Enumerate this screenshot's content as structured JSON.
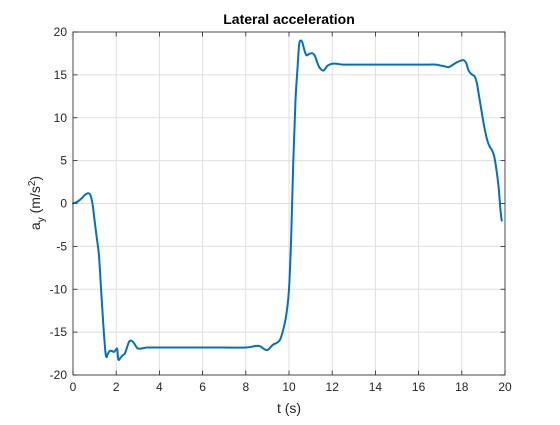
{
  "chart_data": {
    "type": "line",
    "title": "Lateral acceleration",
    "xlabel": "t (s)",
    "ylabel_main": "a",
    "ylabel_sub": "y",
    "ylabel_unit_prefix": " (m/s",
    "ylabel_unit_sup": "2",
    "ylabel_unit_suffix": ")",
    "xlim": [
      0,
      20
    ],
    "ylim": [
      -20,
      20
    ],
    "xticks": [
      0,
      2,
      4,
      6,
      8,
      10,
      12,
      14,
      16,
      18,
      20
    ],
    "yticks": [
      -20,
      -15,
      -10,
      -5,
      0,
      5,
      10,
      15,
      20
    ],
    "xtick_labels": [
      "0",
      "2",
      "4",
      "6",
      "8",
      "10",
      "12",
      "14",
      "16",
      "18",
      "20"
    ],
    "ytick_labels": [
      "-20",
      "-15",
      "-10",
      "-5",
      "0",
      "5",
      "10",
      "15",
      "20"
    ],
    "grid": true,
    "box": true,
    "line_color": "#0072BD",
    "series": [
      {
        "x": [
          0,
          0.2,
          0.4,
          0.55,
          0.7,
          0.8,
          0.9,
          1.0,
          1.1,
          1.2,
          1.3,
          1.4,
          1.5,
          1.55,
          1.6,
          1.7,
          1.8,
          1.9,
          2.0,
          2.05,
          2.1,
          2.2,
          2.3,
          2.4,
          2.5,
          2.6,
          2.7,
          2.8,
          2.9,
          3.0,
          3.2,
          3.4,
          3.6,
          4.0,
          5.0,
          6.0,
          7.0,
          8.0,
          8.5,
          8.7,
          8.8,
          9.0,
          9.2,
          9.3,
          9.4,
          9.6,
          9.8,
          9.9,
          10.0,
          10.1,
          10.2,
          10.3,
          10.4,
          10.45,
          10.5,
          10.6,
          10.7,
          10.8,
          10.9,
          11.0,
          11.1,
          11.2,
          11.3,
          11.4,
          11.5,
          11.6,
          11.7,
          11.8,
          12.0,
          12.2,
          12.5,
          13.0,
          14.0,
          15.0,
          16.0,
          16.5,
          16.8,
          17.0,
          17.2,
          17.4,
          17.6,
          17.8,
          18.0,
          18.1,
          18.2,
          18.3,
          18.4,
          18.5,
          18.6,
          18.7,
          18.8,
          18.9,
          19.0,
          19.1,
          19.2,
          19.3,
          19.4,
          19.5,
          19.6,
          19.7,
          19.8,
          19.85
        ],
        "y": [
          0,
          0.2,
          0.6,
          1.0,
          1.2,
          1.0,
          0,
          -2,
          -4,
          -6,
          -10,
          -14,
          -17.3,
          -17.9,
          -17.6,
          -17.2,
          -17.2,
          -17.3,
          -17.0,
          -17.0,
          -18.2,
          -18.0,
          -17.7,
          -17.5,
          -16.8,
          -16.1,
          -16.0,
          -16.2,
          -16.6,
          -16.9,
          -16.9,
          -16.8,
          -16.8,
          -16.8,
          -16.8,
          -16.8,
          -16.8,
          -16.8,
          -16.6,
          -16.7,
          -16.9,
          -17.1,
          -16.6,
          -16.4,
          -16.3,
          -15.8,
          -14.0,
          -12.5,
          -10.0,
          -4,
          5,
          12,
          16,
          18.0,
          18.9,
          18.9,
          18.0,
          17.3,
          17.4,
          17.5,
          17.5,
          17.2,
          16.5,
          15.9,
          15.6,
          15.5,
          15.8,
          16.1,
          16.3,
          16.3,
          16.2,
          16.2,
          16.2,
          16.2,
          16.2,
          16.2,
          16.2,
          16.1,
          16.0,
          15.9,
          16.2,
          16.5,
          16.7,
          16.7,
          16.4,
          15.6,
          15.2,
          15.0,
          14.8,
          14.0,
          12.5,
          11.0,
          9.5,
          8.2,
          7.2,
          6.6,
          6.2,
          5.5,
          4.0,
          2.0,
          -1.0,
          -2.0
        ]
      }
    ]
  }
}
